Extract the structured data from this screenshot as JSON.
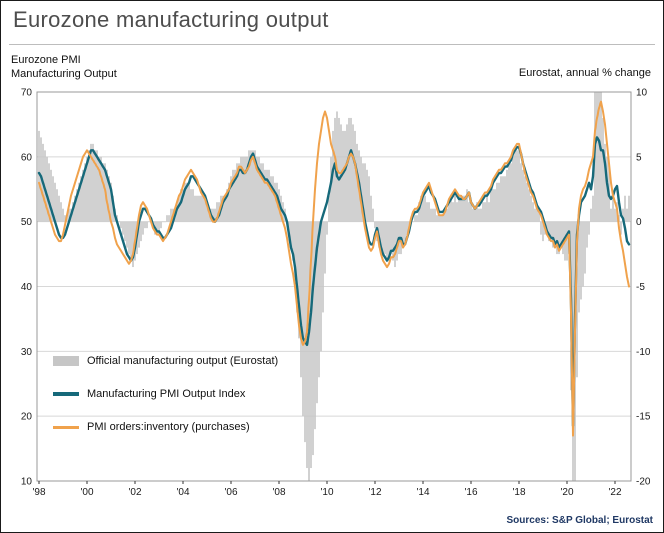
{
  "title": "Eurozone manufacturing output",
  "labels": {
    "left_line1": "Eurozone PMI",
    "left_line2": "Manufacturing Output",
    "right": "Eurostat, annual % change"
  },
  "source": "Sources: S&P Global; Eurostat",
  "chart_data": {
    "type": "mixed",
    "title": "Eurozone manufacturing output",
    "x_start": 1998.0,
    "x_step": 0.0833333,
    "x_unit": "month",
    "y_left": {
      "min": 10,
      "max": 70,
      "ticks": [
        70,
        60,
        50,
        40,
        30,
        20,
        10
      ]
    },
    "y_right": {
      "min": -20,
      "max": 10,
      "ticks": [
        10,
        5,
        0,
        -5,
        -10,
        -15,
        -20
      ]
    },
    "x_ticks": [
      {
        "year": 1998,
        "label": "'98"
      },
      {
        "year": 2000,
        "label": "'00"
      },
      {
        "year": 2002,
        "label": "'02"
      },
      {
        "year": 2004,
        "label": "'04"
      },
      {
        "year": 2006,
        "label": "'06"
      },
      {
        "year": 2008,
        "label": "'08"
      },
      {
        "year": 2010,
        "label": "'10"
      },
      {
        "year": 2012,
        "label": "'12"
      },
      {
        "year": 2014,
        "label": "'14"
      },
      {
        "year": 2016,
        "label": "'16"
      },
      {
        "year": 2018,
        "label": "'18"
      },
      {
        "year": 2020,
        "label": "'20"
      },
      {
        "year": 2022,
        "label": "'22"
      }
    ],
    "grid": true,
    "legend_position": "inside-left",
    "series": [
      {
        "name": "Official manufacturing output (Eurostat)",
        "type": "bar",
        "axis": "right",
        "color": "#c6c6c6",
        "values": [
          7,
          6.5,
          6,
          5.5,
          5,
          4.5,
          4,
          3.5,
          3,
          2.5,
          2,
          1.5,
          1,
          0.5,
          0.5,
          1,
          1,
          1.5,
          2,
          2.5,
          3,
          3.5,
          4,
          4.5,
          5,
          5.5,
          6,
          6,
          5.5,
          5.5,
          5,
          5,
          4.5,
          4.5,
          4,
          3.5,
          3,
          2,
          1,
          0.5,
          0,
          -0.5,
          -1,
          -1.5,
          -2,
          -2.5,
          -3,
          -3.5,
          -3,
          -2.5,
          -2,
          -1.5,
          -1,
          -0.5,
          -0.5,
          0,
          0,
          -0.5,
          -1,
          -1,
          -1,
          -0.5,
          0,
          0,
          0.5,
          0.5,
          1,
          1,
          1,
          1.5,
          2,
          2.5,
          2.5,
          3,
          3,
          3,
          2.5,
          2.5,
          2,
          2,
          2,
          2,
          2,
          2,
          1.5,
          1,
          1,
          1,
          1,
          1.5,
          1.5,
          2,
          2,
          2,
          2.5,
          3,
          3.5,
          4,
          4,
          4.5,
          4.5,
          5,
          5,
          5,
          5,
          5.5,
          5.5,
          5.5,
          5.5,
          5,
          5,
          4.5,
          4.5,
          4,
          4,
          4,
          3.5,
          3.5,
          3,
          3,
          2.5,
          2,
          1.5,
          1,
          0,
          -1,
          -2,
          -3,
          -5,
          -7,
          -9,
          -12,
          -15,
          -17,
          -19,
          -20,
          -19,
          -18,
          -16,
          -14,
          -12,
          -10,
          -7,
          -4,
          -1,
          2,
          5,
          7,
          8,
          8.5,
          8,
          7.5,
          7,
          7,
          7.5,
          8,
          8,
          7.5,
          7,
          6,
          5.5,
          5,
          4.5,
          4.5,
          4,
          3.5,
          2,
          1,
          -0.5,
          -1.5,
          -2,
          -2.5,
          -2.5,
          -2.5,
          -3,
          -3,
          -2.5,
          -3,
          -3.5,
          -3,
          -2.5,
          -2.5,
          -2,
          -1.5,
          -1,
          -0.5,
          0,
          0,
          0.5,
          0.5,
          1.5,
          2,
          2,
          2,
          1.5,
          1.5,
          1,
          1,
          1,
          0.5,
          0.5,
          0.5,
          0.5,
          1,
          1,
          1.5,
          2,
          1.5,
          2,
          1.5,
          2,
          2,
          2,
          2,
          2.5,
          1.5,
          1.5,
          1,
          1,
          1.5,
          1,
          1,
          1.5,
          1.5,
          2,
          1.5,
          2.5,
          2.5,
          2.5,
          3,
          3,
          3.5,
          3.5,
          3.5,
          4,
          4.5,
          4.5,
          5,
          5.5,
          5.5,
          5.5,
          4.5,
          4,
          3.5,
          3,
          2.5,
          2,
          1.5,
          1,
          1,
          1,
          -1,
          -1.5,
          -1,
          -1,
          -1.5,
          -1.5,
          -2,
          -2,
          -2.5,
          -2.5,
          -2,
          -2.5,
          -3,
          -3,
          -2.5,
          -13,
          -28,
          -22,
          -12,
          -7,
          -6,
          -5,
          -4,
          -2,
          -1,
          1,
          2,
          11,
          27,
          21,
          11,
          8,
          6,
          5,
          4.5,
          1,
          2,
          1,
          1.5,
          0.5,
          -1,
          1,
          2,
          1,
          2
        ]
      },
      {
        "name": "Manufacturing PMI Output Index",
        "type": "line",
        "axis": "left",
        "color": "#16697a",
        "width": 2.4,
        "values": [
          57.5,
          57,
          56,
          55,
          54,
          53,
          52,
          51,
          50,
          49,
          48,
          47.5,
          47.5,
          48,
          49,
          50,
          51,
          52,
          53,
          54,
          55,
          56,
          57,
          58,
          59,
          60,
          61,
          61,
          60.5,
          60,
          59.5,
          59,
          58.5,
          58,
          57,
          56,
          55,
          53,
          51,
          50,
          49,
          48,
          47,
          46,
          45,
          44.5,
          44,
          44.5,
          46,
          48,
          50,
          51,
          52,
          52,
          51.5,
          51,
          50.5,
          49.5,
          49,
          48.5,
          48.5,
          48,
          47.5,
          47.5,
          48,
          48.5,
          49,
          50,
          51,
          52,
          52.5,
          53,
          54,
          55,
          55.5,
          56,
          57,
          57,
          56.5,
          56,
          55.5,
          55,
          54.5,
          54,
          53,
          52,
          51,
          50.5,
          50,
          50.5,
          51,
          52,
          53,
          53.5,
          54,
          55,
          55.5,
          56,
          56.5,
          57,
          58,
          58,
          57.5,
          57.5,
          58,
          59,
          60,
          60.5,
          59.5,
          58.5,
          58,
          57.5,
          57,
          56.5,
          56.5,
          56,
          55.5,
          55,
          54.5,
          54,
          53,
          52,
          51.5,
          51,
          50,
          48,
          46,
          45,
          43,
          40,
          37,
          34,
          32,
          31.5,
          31,
          33,
          36,
          40,
          43,
          46,
          48,
          50,
          51,
          52,
          53,
          54.5,
          56,
          58,
          59,
          57,
          56.5,
          57,
          57.5,
          58,
          59,
          60,
          61,
          60,
          59,
          57.5,
          56,
          54,
          52,
          50,
          48.5,
          47,
          46.5,
          46.5,
          48,
          49,
          47.5,
          46,
          45,
          44.5,
          44,
          44.5,
          45.5,
          45.5,
          46,
          46.5,
          47.5,
          47.5,
          46.5,
          46.5,
          47.5,
          48.5,
          50,
          51,
          51.5,
          51.5,
          52,
          53,
          54,
          54.5,
          55,
          55.5,
          54.5,
          54,
          53.5,
          52.5,
          51.5,
          51.5,
          51.5,
          52,
          52.5,
          53,
          53.5,
          54,
          54.5,
          54,
          53.5,
          53.5,
          53.5,
          53.5,
          54,
          54.5,
          53,
          52.5,
          52,
          52.5,
          52.5,
          53,
          53.5,
          54,
          54,
          54.5,
          55,
          56,
          56.5,
          57,
          57.5,
          57.5,
          58,
          58.5,
          58.5,
          59,
          59.5,
          60.5,
          61,
          61.5,
          61.5,
          60.5,
          59,
          58,
          57,
          56,
          55,
          54.5,
          53.5,
          52.5,
          52,
          51.5,
          50.5,
          49.5,
          48.5,
          48,
          47.5,
          47.5,
          46.5,
          47,
          46,
          46.5,
          47,
          47.5,
          48,
          48.5,
          38,
          18.5,
          35,
          48,
          51,
          53,
          53.5,
          54,
          55,
          56,
          55,
          57,
          62,
          63,
          62.5,
          61,
          61,
          59,
          56,
          54,
          53.5,
          54,
          55,
          55.5,
          53,
          51,
          50.5,
          49,
          47,
          46.5
        ]
      },
      {
        "name": "PMI orders:inventory (purchases)",
        "type": "line",
        "axis": "left",
        "color": "#f0a24c",
        "width": 2,
        "values": [
          56,
          55,
          54,
          53,
          52,
          51,
          50,
          49,
          48,
          47.5,
          47,
          47,
          48,
          49.5,
          51,
          52.5,
          54,
          55,
          56,
          57,
          58,
          59,
          60,
          60.5,
          61,
          60.5,
          60,
          59.5,
          59,
          58.5,
          58,
          57,
          56,
          55,
          53,
          51.5,
          50,
          49,
          47.5,
          46.5,
          46,
          45.5,
          45,
          44.5,
          44,
          43.5,
          44,
          45,
          47,
          49,
          51,
          52.5,
          53,
          52.5,
          52,
          51,
          50,
          49,
          48.5,
          48,
          48,
          47.5,
          47,
          47.5,
          48,
          49,
          50,
          51,
          52,
          53,
          54,
          54.5,
          55.5,
          56.5,
          57,
          57.5,
          58,
          57.5,
          57,
          56.5,
          55.5,
          54.5,
          54,
          53.5,
          52.5,
          51.5,
          50.5,
          50,
          50,
          50.5,
          51.5,
          52.5,
          53.5,
          54,
          54.5,
          55,
          56,
          56.5,
          57,
          57.5,
          58.5,
          58.5,
          58,
          57.5,
          58,
          58.5,
          59.5,
          60,
          59,
          58,
          57.5,
          57,
          56.5,
          56,
          56,
          55.5,
          55,
          54.5,
          54,
          53,
          52,
          51,
          50,
          49,
          47.5,
          45.5,
          43.5,
          42,
          40,
          37,
          34,
          32,
          31,
          31.5,
          33,
          38,
          44,
          50,
          55,
          59,
          62,
          64,
          66,
          67,
          66,
          64,
          62,
          61,
          60,
          58,
          57.5,
          57.5,
          58,
          58.5,
          59,
          60,
          60.5,
          60,
          59,
          57,
          55,
          53,
          51,
          49,
          47.5,
          46,
          45.5,
          46,
          47.5,
          48.5,
          46.5,
          45,
          44,
          43.5,
          43,
          43.5,
          44.5,
          44.5,
          45,
          46,
          47,
          47,
          46,
          46.5,
          47.5,
          49,
          50.5,
          51.5,
          52,
          52,
          52.5,
          53.5,
          54.5,
          55,
          55.5,
          56,
          55,
          54,
          53,
          52,
          51,
          51,
          51,
          51.5,
          52.5,
          53.5,
          54,
          54.5,
          55,
          54.5,
          54,
          54,
          53.5,
          53.5,
          54,
          54.5,
          53,
          52.5,
          52,
          52.5,
          53,
          53.5,
          54,
          54.5,
          54.5,
          55,
          55.5,
          56.5,
          57,
          57.5,
          58,
          58,
          58.5,
          59,
          59,
          59.5,
          60,
          61,
          61.5,
          62,
          62,
          60.5,
          59,
          57.5,
          56.5,
          55.5,
          54.5,
          54,
          53,
          52,
          51.5,
          51,
          50,
          49,
          48,
          47.5,
          47,
          47,
          46,
          46.5,
          45.5,
          46,
          46.5,
          47,
          47.5,
          48,
          36,
          17,
          33,
          47,
          52,
          54,
          55,
          55.5,
          56.5,
          58,
          59,
          60,
          64,
          66,
          67.5,
          68.5,
          67,
          65,
          62,
          59,
          56,
          54,
          53,
          52,
          49,
          47,
          45.5,
          43.5,
          41.5,
          40
        ]
      }
    ]
  }
}
